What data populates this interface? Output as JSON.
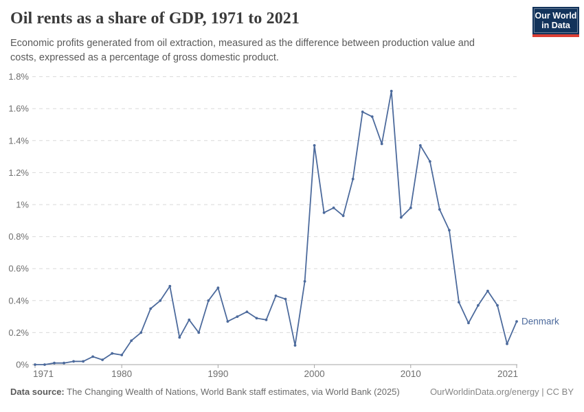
{
  "header": {
    "title": "Oil rents as a share of GDP, 1971 to 2021",
    "subtitle": "Economic profits generated from oil extraction, measured as the difference between production value and costs, expressed as a percentage of gross domestic product.",
    "logo": {
      "line1": "Our World",
      "line2": "in Data",
      "bg_color": "#12335b",
      "accent_color": "#dc3f34"
    }
  },
  "chart_data": {
    "type": "line",
    "title": "Oil rents as a share of GDP, 1971 to 2021",
    "xlabel": "",
    "ylabel": "",
    "ylim": [
      0,
      1.8
    ],
    "grid": "horizontal-dashed",
    "legend": "entity label at end of line",
    "x": [
      1971,
      1972,
      1973,
      1974,
      1975,
      1976,
      1977,
      1978,
      1979,
      1980,
      1981,
      1982,
      1983,
      1984,
      1985,
      1986,
      1987,
      1988,
      1989,
      1990,
      1991,
      1992,
      1993,
      1994,
      1995,
      1996,
      1997,
      1998,
      1999,
      2000,
      2001,
      2002,
      2003,
      2004,
      2005,
      2006,
      2007,
      2008,
      2009,
      2010,
      2011,
      2012,
      2013,
      2014,
      2015,
      2016,
      2017,
      2018,
      2019,
      2020,
      2021
    ],
    "series": [
      {
        "name": "Denmark",
        "color": "#4c6a9c",
        "values": [
          0,
          0,
          0.01,
          0.01,
          0.02,
          0.02,
          0.05,
          0.03,
          0.07,
          0.06,
          0.15,
          0.2,
          0.35,
          0.4,
          0.49,
          0.17,
          0.28,
          0.2,
          0.4,
          0.48,
          0.27,
          0.3,
          0.33,
          0.29,
          0.28,
          0.43,
          0.41,
          0.12,
          0.52,
          1.37,
          0.95,
          0.98,
          0.93,
          1.16,
          1.58,
          1.55,
          1.38,
          1.71,
          0.92,
          0.98,
          1.37,
          1.27,
          0.97,
          0.84,
          0.39,
          0.26,
          0.37,
          0.46,
          0.37,
          0.13,
          0.27
        ]
      }
    ],
    "x_ticks": [
      1971,
      1980,
      1990,
      2000,
      2010,
      2021
    ],
    "y_ticks": [
      {
        "value": 0,
        "label": "0%"
      },
      {
        "value": 0.2,
        "label": "0.2%"
      },
      {
        "value": 0.4,
        "label": "0.4%"
      },
      {
        "value": 0.6,
        "label": "0.6%"
      },
      {
        "value": 0.8,
        "label": "0.8%"
      },
      {
        "value": 1,
        "label": "1%"
      },
      {
        "value": 1.2,
        "label": "1.2%"
      },
      {
        "value": 1.4,
        "label": "1.4%"
      },
      {
        "value": 1.6,
        "label": "1.6%"
      },
      {
        "value": 1.8,
        "label": "1.8%"
      }
    ],
    "colors": {
      "gridline": "#d9d9d9",
      "axis": "#a5a5a5",
      "tick_label": "#6e6e6e"
    }
  },
  "footer": {
    "source_label": "Data source:",
    "source_text": " The Changing Wealth of Nations, World Bank staff estimates, via World Bank (2025)",
    "right_text": "OurWorldinData.org/energy | CC BY"
  }
}
